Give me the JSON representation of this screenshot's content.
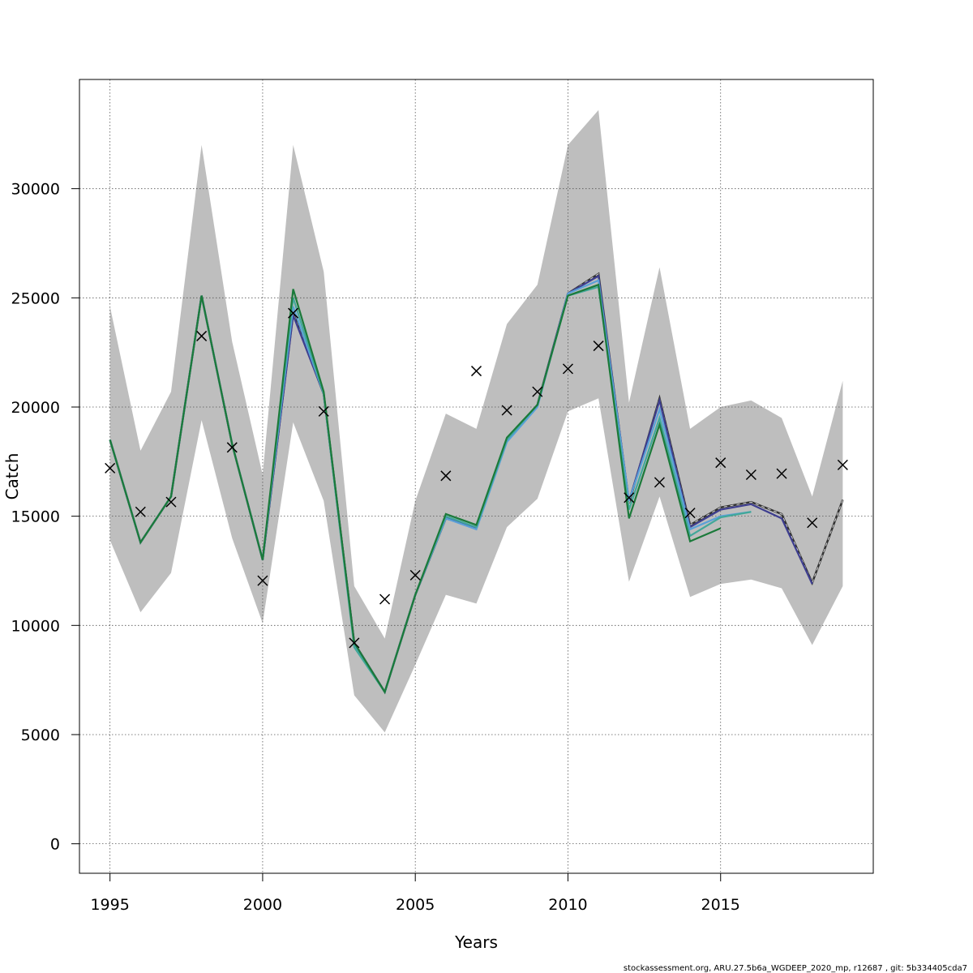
{
  "chart_data": {
    "type": "line",
    "xlabel": "Years",
    "ylabel": "Catch",
    "xlim": [
      1994,
      2020
    ],
    "ylim": [
      -1350,
      35000
    ],
    "x_ticks": [
      1995,
      2000,
      2005,
      2010,
      2015
    ],
    "y_ticks": [
      0,
      5000,
      10000,
      15000,
      20000,
      25000,
      30000
    ],
    "grid": true,
    "x": [
      1995,
      1996,
      1997,
      1998,
      1999,
      2000,
      2001,
      2002,
      2003,
      2004,
      2005,
      2006,
      2007,
      2008,
      2009,
      2010,
      2011,
      2012,
      2013,
      2014,
      2015,
      2016,
      2017,
      2018,
      2019
    ],
    "band": {
      "color": "#bebebe",
      "upper": [
        24600,
        18000,
        20700,
        32000,
        23000,
        16900,
        32000,
        26200,
        11800,
        9400,
        15700,
        19700,
        19000,
        23800,
        25600,
        32000,
        33600,
        20200,
        26400,
        19000,
        20000,
        20300,
        19500,
        15900,
        21200
      ],
      "lower": [
        13900,
        10600,
        12400,
        19400,
        14000,
        10100,
        19300,
        15700,
        6800,
        5100,
        8200,
        11400,
        11000,
        14500,
        15800,
        19800,
        20400,
        12000,
        15900,
        11300,
        11900,
        12100,
        11700,
        9100,
        11800
      ]
    },
    "observed": {
      "marker": "x",
      "color": "#000000",
      "values": [
        17200,
        15200,
        15650,
        23250,
        18150,
        12050,
        24300,
        19800,
        9200,
        11200,
        12300,
        16850,
        21650,
        19850,
        20700,
        21750,
        22800,
        15850,
        16550,
        15150,
        17450,
        16900,
        16950,
        14700,
        17350
      ]
    },
    "series": [
      {
        "color": "#333333",
        "dashed": true,
        "values": [
          18500,
          13800,
          15900,
          25100,
          18300,
          13000,
          24300,
          20600,
          9200,
          6950,
          11400,
          14900,
          14500,
          18500,
          20100,
          25200,
          26100,
          15600,
          20400,
          14600,
          15400,
          15650,
          15100,
          11950,
          15750
        ]
      },
      {
        "color": "#3d3d8f",
        "values": [
          18500,
          13800,
          15900,
          25100,
          18300,
          13000,
          24200,
          20600,
          9200,
          6950,
          11400,
          14950,
          14450,
          18500,
          20100,
          25200,
          26000,
          15700,
          20300,
          14500,
          15300,
          15550,
          14900,
          11900,
          null
        ]
      },
      {
        "color": "#5aa0d8",
        "values": [
          18500,
          13800,
          15900,
          25100,
          18300,
          13000,
          24600,
          20600,
          9100,
          6950,
          11400,
          14900,
          14400,
          18400,
          20000,
          25200,
          25800,
          15700,
          19900,
          14400,
          15000,
          15200,
          null,
          null,
          null
        ]
      },
      {
        "color": "#41a89a",
        "values": [
          18500,
          13800,
          15900,
          25100,
          18300,
          13000,
          25000,
          20600,
          9000,
          6950,
          11400,
          15000,
          14500,
          18500,
          20100,
          25100,
          25500,
          15300,
          19500,
          14100,
          14950,
          15200,
          null,
          null,
          null
        ]
      },
      {
        "color": "#1b7a3a",
        "values": [
          18500,
          13800,
          15900,
          25100,
          18300,
          13000,
          25400,
          20700,
          9200,
          6950,
          11400,
          15100,
          14600,
          18600,
          20100,
          25100,
          25600,
          14900,
          19200,
          13850,
          14450,
          null,
          null,
          null,
          null
        ]
      }
    ]
  },
  "footer": "stockassessment.org, ARU.27.5b6a_WGDEEP_2020_mp, r12687 , git: 5b334405cda7"
}
